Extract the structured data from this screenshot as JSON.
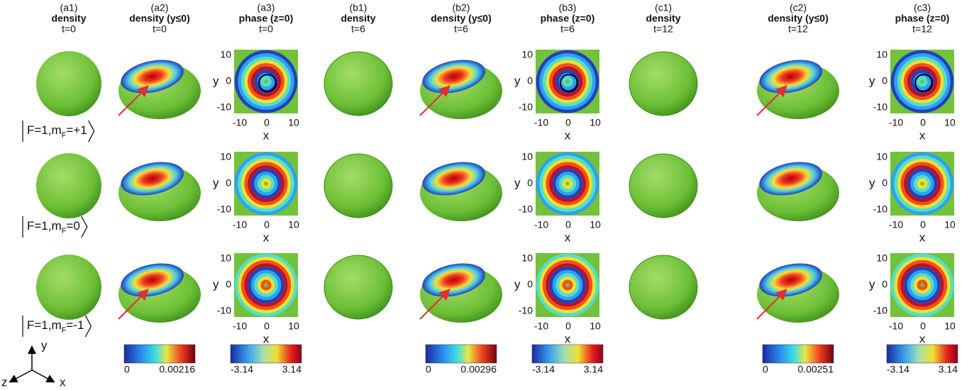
{
  "panels": [
    {
      "id": "(a1)",
      "title": "density",
      "time": "t=0"
    },
    {
      "id": "(a2)",
      "title": "density (y≤0)",
      "time": "t=0"
    },
    {
      "id": "(a3)",
      "title": "phase (z=0)",
      "time": "t=0"
    },
    {
      "id": "(b1)",
      "title": "density",
      "time": "t=6"
    },
    {
      "id": "(b2)",
      "title": "density (y≤0)",
      "time": "t=6"
    },
    {
      "id": "(b3)",
      "title": "phase (z=0)",
      "time": "t=6"
    },
    {
      "id": "(c1)",
      "title": "density",
      "time": "t=12"
    },
    {
      "id": "(c2)",
      "title": "density (y≤0)",
      "time": "t=12"
    },
    {
      "id": "(c3)",
      "title": "phase (z=0)",
      "time": "t=12"
    }
  ],
  "rows": [
    {
      "prefix": "F=1,m",
      "sub": "F",
      "suffix": "=+1"
    },
    {
      "prefix": "F=1,m",
      "sub": "F",
      "suffix": "=0"
    },
    {
      "prefix": "F=1,m",
      "sub": "F",
      "suffix": "=-1"
    }
  ],
  "phase_axes": {
    "xlabel": "x",
    "ylabel": "y",
    "xticks": [
      -10,
      0,
      10
    ],
    "yticks": [
      10,
      0,
      -10
    ]
  },
  "colorbars": [
    {
      "min": 0,
      "max": 0.00216
    },
    {
      "min": -3.14,
      "max": 3.14
    },
    {
      "min": 0,
      "max": 0.00296
    },
    {
      "min": -3.14,
      "max": 3.14
    },
    {
      "min": 0,
      "max": 0.00251
    },
    {
      "min": -3.14,
      "max": 3.14
    }
  ],
  "triad": {
    "y": "y",
    "z": "z",
    "x": "x"
  }
}
